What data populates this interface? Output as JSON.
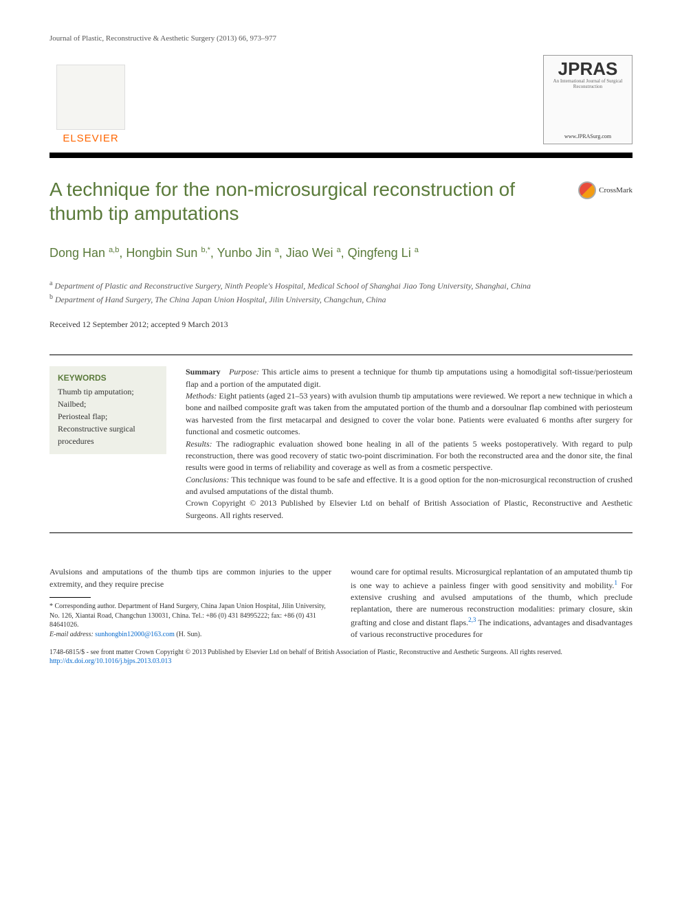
{
  "journal_ref": "Journal of Plastic, Reconstructive & Aesthetic Surgery (2013) 66, 973–977",
  "publisher": {
    "name": "ELSEVIER",
    "color": "#ff6600"
  },
  "journal_logo": {
    "acronym": "JPRAS",
    "subtitle": "An International Journal of Surgical Reconstruction",
    "url": "www.JPRASurg.com"
  },
  "title": "A technique for the non-microsurgical reconstruction of thumb tip amputations",
  "crossmark_label": "CrossMark",
  "authors_html": "Dong Han <sup>a,b</sup>, Hongbin Sun <sup>b,*</sup>, Yunbo Jin <sup>a</sup>, Jiao Wei <sup>a</sup>, Qingfeng Li <sup>a</sup>",
  "affiliations": [
    {
      "marker": "a",
      "text": "Department of Plastic and Reconstructive Surgery, Ninth People's Hospital, Medical School of Shanghai Jiao Tong University, Shanghai, China"
    },
    {
      "marker": "b",
      "text": "Department of Hand Surgery, The China Japan Union Hospital, Jilin University, Changchun, China"
    }
  ],
  "dates": "Received 12 September 2012; accepted 9 March 2013",
  "keywords": {
    "heading": "KEYWORDS",
    "items": "Thumb tip amputation;\nNailbed;\nPeriosteal flap;\nReconstructive surgical procedures"
  },
  "abstract": {
    "summary_label": "Summary",
    "purpose_label": "Purpose:",
    "purpose": " This article aims to present a technique for thumb tip amputations using a homodigital soft-tissue/periosteum flap and a portion of the amputated digit.",
    "methods_label": "Methods:",
    "methods": " Eight patients (aged 21–53 years) with avulsion thumb tip amputations were reviewed. We report a new technique in which a bone and nailbed composite graft was taken from the amputated portion of the thumb and a dorsoulnar flap combined with periosteum was harvested from the first metacarpal and designed to cover the volar bone. Patients were evaluated 6 months after surgery for functional and cosmetic outcomes.",
    "results_label": "Results:",
    "results": " The radiographic evaluation showed bone healing in all of the patients 5 weeks postoperatively. With regard to pulp reconstruction, there was good recovery of static two-point discrimination. For both the reconstructed area and the donor site, the final results were good in terms of reliability and coverage as well as from a cosmetic perspective.",
    "conclusions_label": "Conclusions:",
    "conclusions": " This technique was found to be safe and effective. It is a good option for the non-microsurgical reconstruction of crushed and avulsed amputations of the distal thumb.",
    "copyright": "Crown Copyright © 2013 Published by Elsevier Ltd on behalf of British Association of Plastic, Reconstructive and Aesthetic Surgeons. All rights reserved."
  },
  "body": {
    "col1_para": "Avulsions and amputations of the thumb tips are common injuries to the upper extremity, and they require precise",
    "col2_para": "wound care for optimal results. Microsurgical replantation of an amputated thumb tip is one way to achieve a painless finger with good sensitivity and mobility.<sup class=\"ref\">1</sup> For extensive crushing and avulsed amputations of the thumb, which preclude replantation, there are numerous reconstruction modalities: primary closure, skin grafting and close and distant flaps.<sup class=\"ref\">2,3</sup> The indications, advantages and disadvantages of various reconstructive procedures for"
  },
  "footnote": {
    "corresponding": "* Corresponding author. Department of Hand Surgery, China Japan Union Hospital, Jilin University, No. 126, Xiantai Road, Changchun 130031, China. Tel.: +86 (0) 431 84995222; fax: +86 (0) 431 84641026.",
    "email_label": "E-mail address:",
    "email": "sunhongbin12000@163.com",
    "email_name": "(H. Sun)."
  },
  "bottom": {
    "issn_line": "1748-6815/$ - see front matter Crown Copyright © 2013 Published by Elsevier Ltd on behalf of British Association of Plastic, Reconstructive and Aesthetic Surgeons. All rights reserved.",
    "doi": "http://dx.doi.org/10.1016/j.bjps.2013.03.013"
  },
  "colors": {
    "accent_green": "#5a7a3a",
    "link_blue": "#0066cc",
    "keywords_bg": "#eef0e8",
    "divider_black": "#000000"
  }
}
